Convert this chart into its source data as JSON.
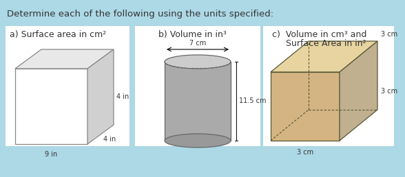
{
  "bg_color": "#add8e6",
  "title": "Determine each of the following using the units specified:",
  "title_fontsize": 9.5,
  "label_a": "a) Surface area in cm²",
  "label_b": "b) Volume in in³",
  "label_c": "c)  Volume in cm³ and\n     Surface Area in in²",
  "label_fontsize": 9.0,
  "dim_fontsize": 7.0,
  "box1_9in": "9 in",
  "box1_4in_r": "4 in",
  "box1_4in_b": "4 in",
  "box2_7cm": "7 cm",
  "box2_115cm": "11.5 cm",
  "box3_3cm_bot": "3 cm",
  "box3_3cm_right": "3 cm",
  "box3_3cm_top": "3 cm"
}
